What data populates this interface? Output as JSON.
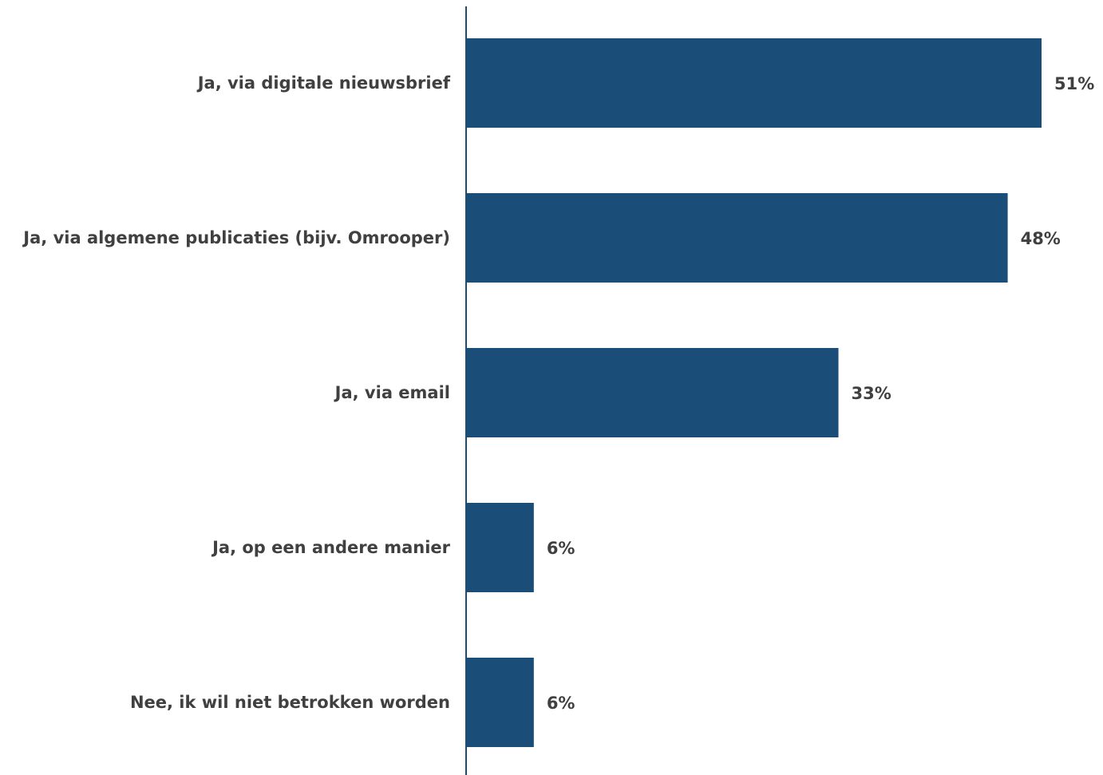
{
  "chart_data": {
    "type": "bar",
    "orientation": "horizontal",
    "categories": [
      "Ja, via digitale nieuwsbrief",
      "Ja, via algemene publicaties (bijv. Omrooper)",
      "Ja, via email",
      "Ja, op een andere manier",
      "Nee, ik wil niet betrokken worden"
    ],
    "values": [
      51,
      48,
      33,
      6,
      6
    ],
    "value_labels": [
      "51%",
      "48%",
      "33%",
      "6%",
      "6%"
    ],
    "unit": "%",
    "xlim": [
      0,
      51
    ],
    "grid": false,
    "legend": "none",
    "colors": {
      "bar": "#1a4e79",
      "axis": "#1a4e79",
      "text": "#404040"
    }
  }
}
